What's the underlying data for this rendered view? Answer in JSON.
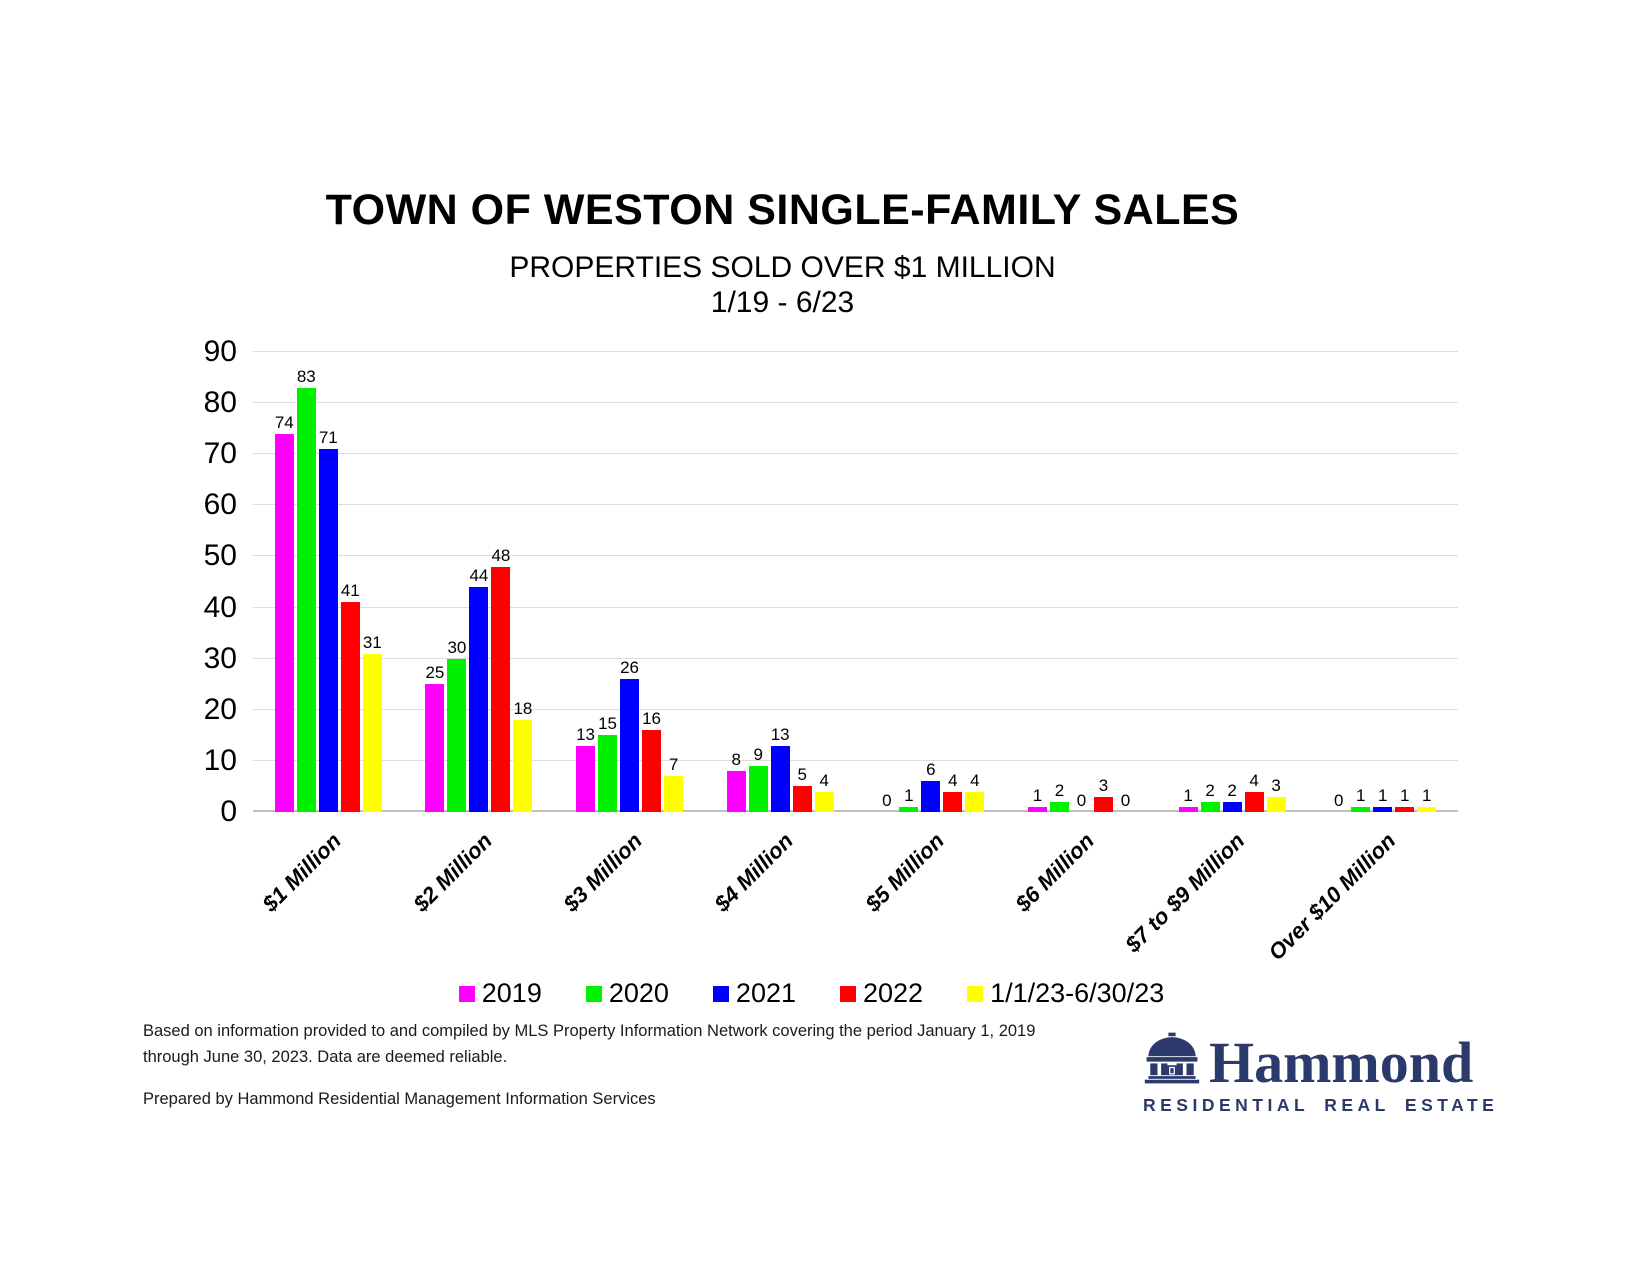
{
  "title": "TOWN OF WESTON SINGLE-FAMILY SALES",
  "subtitle": "PROPERTIES SOLD OVER $1 MILLION",
  "subtitle2": "1/19 - 6/23",
  "chart_data": {
    "type": "bar",
    "title": "TOWN OF WESTON SINGLE-FAMILY SALES",
    "subtitle": "PROPERTIES SOLD OVER $1 MILLION 1/19 - 6/23",
    "categories": [
      "$1 Million",
      "$2 Million",
      "$3 Million",
      "$4 Million",
      "$5 Million",
      "$6 Million",
      "$7 to $9 Million",
      "Over $10 Million"
    ],
    "series": [
      {
        "name": "2019",
        "color": "#FF00FF",
        "values": [
          74,
          25,
          13,
          8,
          0,
          1,
          1,
          0
        ]
      },
      {
        "name": "2020",
        "color": "#00F000",
        "values": [
          83,
          30,
          15,
          9,
          1,
          2,
          2,
          1
        ]
      },
      {
        "name": "2021",
        "color": "#0000FF",
        "values": [
          71,
          44,
          26,
          13,
          6,
          0,
          2,
          1
        ]
      },
      {
        "name": "2022",
        "color": "#FF0000",
        "values": [
          41,
          48,
          16,
          5,
          4,
          3,
          4,
          1
        ]
      },
      {
        "name": "1/1/23-6/30/23",
        "color": "#FFFF00",
        "values": [
          31,
          18,
          7,
          4,
          4,
          0,
          3,
          1
        ]
      }
    ],
    "xlabel": "",
    "ylabel": "",
    "ylim": [
      0,
      90
    ],
    "ytick_step": 10,
    "grid": true,
    "data_labels": true,
    "legend_position": "bottom"
  },
  "footer": {
    "line1": "Based on information provided to and compiled by MLS Property Information Network covering the period January 1, 2019",
    "line2": "through June 30, 2023. Data are deemed reliable.",
    "line3": "Prepared by Hammond Residential Management Information Services"
  },
  "logo": {
    "name": "Hammond",
    "tagline": "RESIDENTIAL REAL ESTATE",
    "color": "#2B3A6B"
  }
}
